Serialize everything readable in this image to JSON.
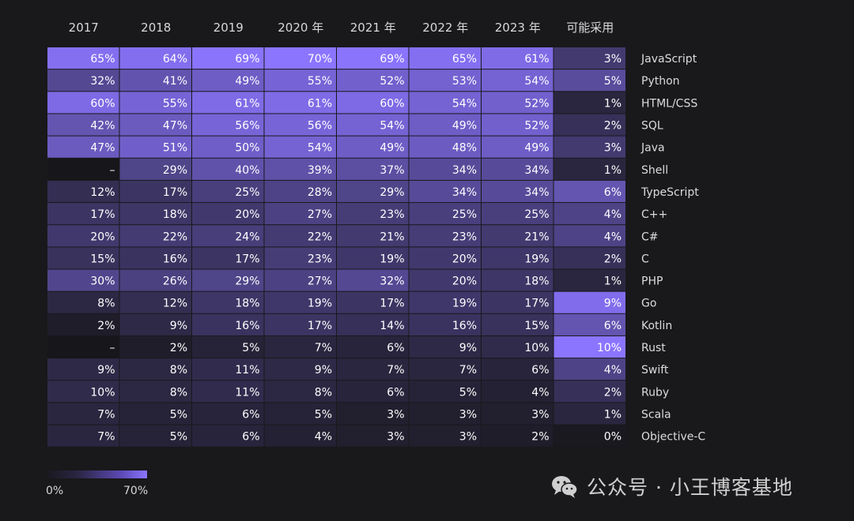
{
  "chart_data": {
    "type": "heatmap",
    "columns": [
      "2017",
      "2018",
      "2019",
      "2020 年",
      "2021 年",
      "2022 年",
      "2023 年",
      "可能采用"
    ],
    "rows": [
      {
        "label": "JavaScript",
        "values": [
          "65%",
          "64%",
          "69%",
          "70%",
          "69%",
          "65%",
          "61%",
          "3%"
        ]
      },
      {
        "label": "Python",
        "values": [
          "32%",
          "41%",
          "49%",
          "55%",
          "52%",
          "53%",
          "54%",
          "5%"
        ]
      },
      {
        "label": "HTML/CSS",
        "values": [
          "60%",
          "55%",
          "61%",
          "61%",
          "60%",
          "54%",
          "52%",
          "1%"
        ]
      },
      {
        "label": "SQL",
        "values": [
          "42%",
          "47%",
          "56%",
          "56%",
          "54%",
          "49%",
          "52%",
          "2%"
        ]
      },
      {
        "label": "Java",
        "values": [
          "47%",
          "51%",
          "50%",
          "54%",
          "49%",
          "48%",
          "49%",
          "3%"
        ]
      },
      {
        "label": "Shell",
        "values": [
          "–",
          "29%",
          "40%",
          "39%",
          "37%",
          "34%",
          "34%",
          "1%"
        ]
      },
      {
        "label": "TypeScript",
        "values": [
          "12%",
          "17%",
          "25%",
          "28%",
          "29%",
          "34%",
          "34%",
          "6%"
        ]
      },
      {
        "label": "C++",
        "values": [
          "17%",
          "18%",
          "20%",
          "27%",
          "23%",
          "25%",
          "25%",
          "4%"
        ]
      },
      {
        "label": "C#",
        "values": [
          "20%",
          "22%",
          "24%",
          "22%",
          "21%",
          "23%",
          "21%",
          "4%"
        ]
      },
      {
        "label": "C",
        "values": [
          "15%",
          "16%",
          "17%",
          "23%",
          "19%",
          "20%",
          "19%",
          "2%"
        ]
      },
      {
        "label": "PHP",
        "values": [
          "30%",
          "26%",
          "29%",
          "27%",
          "32%",
          "20%",
          "18%",
          "1%"
        ]
      },
      {
        "label": "Go",
        "values": [
          "8%",
          "12%",
          "18%",
          "19%",
          "17%",
          "19%",
          "17%",
          "9%"
        ]
      },
      {
        "label": "Kotlin",
        "values": [
          "2%",
          "9%",
          "16%",
          "17%",
          "14%",
          "16%",
          "15%",
          "6%"
        ]
      },
      {
        "label": "Rust",
        "values": [
          "–",
          "2%",
          "5%",
          "7%",
          "6%",
          "9%",
          "10%",
          "10%"
        ]
      },
      {
        "label": "Swift",
        "values": [
          "9%",
          "8%",
          "11%",
          "9%",
          "7%",
          "7%",
          "6%",
          "4%"
        ]
      },
      {
        "label": "Ruby",
        "values": [
          "10%",
          "8%",
          "11%",
          "8%",
          "6%",
          "5%",
          "4%",
          "2%"
        ]
      },
      {
        "label": "Scala",
        "values": [
          "7%",
          "5%",
          "6%",
          "5%",
          "3%",
          "3%",
          "3%",
          "1%"
        ]
      },
      {
        "label": "Objective-C",
        "values": [
          "7%",
          "5%",
          "6%",
          "4%",
          "3%",
          "3%",
          "2%",
          "0%"
        ]
      }
    ],
    "color_scale": {
      "min": 0,
      "max": 70,
      "min_label": "0%",
      "max_label": "70%",
      "min_color": "#1a1920",
      "max_color": "#8b75ff"
    },
    "adoption_scale_max": 10
  },
  "colors": {
    "background": "#19181b",
    "accent": "#8b75ff"
  },
  "watermark": {
    "icon": "wechat-icon",
    "text": "公众号 · 小王博客基地"
  }
}
